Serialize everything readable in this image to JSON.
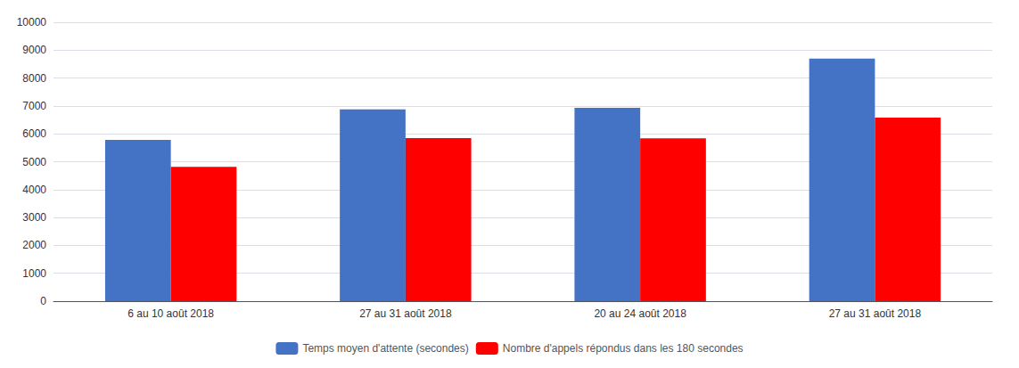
{
  "chart_data": {
    "type": "bar",
    "categories": [
      "6 au 10 août 2018",
      "27 au 31 août 2018",
      "20 au 24 août 2018",
      "27 au 31 août 2018"
    ],
    "series": [
      {
        "name": "Temps moyen d'attente (secondes)",
        "color": "#4472C4",
        "values": [
          5780,
          6880,
          6930,
          8700
        ]
      },
      {
        "name": "Nombre d'appels répondus dans les 180 secondes",
        "color": "#FF0000",
        "values": [
          4820,
          5850,
          5840,
          6580
        ]
      }
    ],
    "ylim": [
      0,
      10000
    ],
    "yticks": [
      0,
      1000,
      2000,
      3000,
      4000,
      5000,
      6000,
      7000,
      8000,
      9000,
      10000
    ],
    "grid": true,
    "legend": "bottom"
  }
}
